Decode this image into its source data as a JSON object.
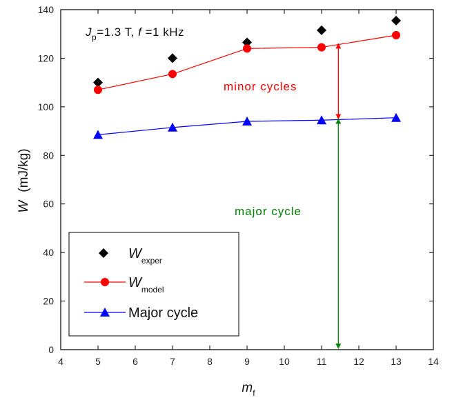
{
  "chart_data": {
    "type": "scatter",
    "x_axis": {
      "label": "m",
      "label_subscript": "f",
      "min": 4,
      "max": 14,
      "ticks": [
        4,
        5,
        6,
        7,
        8,
        9,
        10,
        11,
        12,
        13,
        14
      ]
    },
    "y_axis": {
      "label": "W",
      "unit": "(mJ/kg)",
      "min": 0,
      "max": 140,
      "ticks": [
        0,
        20,
        40,
        60,
        80,
        100,
        120,
        140
      ]
    },
    "series": [
      {
        "name": "W exper",
        "name_main": "W",
        "name_sub": "exper",
        "marker": "diamond",
        "line": false,
        "color": "#000000",
        "x": [
          5,
          7,
          9,
          11,
          13
        ],
        "y": [
          110,
          120,
          126.5,
          131.5,
          135.5
        ]
      },
      {
        "name": "W model",
        "name_main": "W",
        "name_sub": "model",
        "marker": "circle",
        "line": true,
        "color": "#ff0000",
        "x": [
          5,
          7,
          9,
          11,
          13
        ],
        "y": [
          107,
          113.5,
          124,
          124.5,
          129.5
        ]
      },
      {
        "name": "Major cycle",
        "marker": "triangle",
        "line": true,
        "color": "#0000ff",
        "x": [
          5,
          7,
          9,
          11,
          13
        ],
        "y": [
          88.5,
          91.5,
          94,
          94.5,
          95.5
        ]
      }
    ],
    "annotations": [
      {
        "type": "text",
        "text": "minor cycles",
        "color": "#ff0000"
      },
      {
        "type": "text",
        "text": "major cycle",
        "color": "#008000"
      },
      {
        "type": "double-arrow",
        "color": "#ff0000",
        "x": 11.45,
        "y_from": 95,
        "y_to": 126
      },
      {
        "type": "double-arrow",
        "color": "#008000",
        "x": 11.45,
        "y_from": 0.5,
        "y_to": 95
      }
    ],
    "condition": {
      "J_main": "J",
      "J_sub": "p",
      "J_value": "=1.3 T, ",
      "f_main": "f",
      "f_value": " =1 kHz"
    },
    "legend_position": "bottom-left",
    "grid": false
  }
}
